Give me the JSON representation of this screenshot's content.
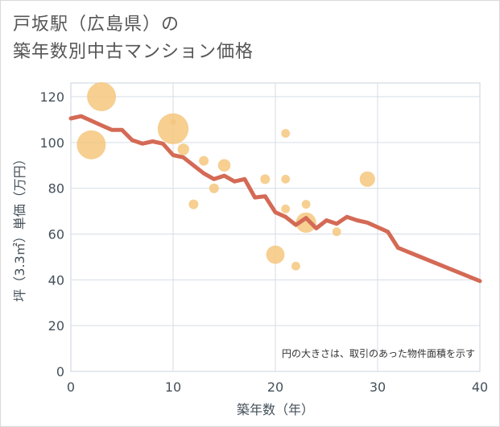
{
  "header": {
    "title_line1": "戸坂駅（広島県）の",
    "title_line2": "築年数別中古マンション価格"
  },
  "chart_data": {
    "type": "scatter",
    "xlabel": "築年数（年）",
    "ylabel": "坪（3.3㎡）単価（万円）",
    "xlim": [
      0,
      40
    ],
    "ylim": [
      0,
      126
    ],
    "xticks": [
      0,
      10,
      20,
      30,
      40
    ],
    "yticks": [
      0,
      20,
      40,
      60,
      80,
      100,
      120
    ],
    "grid": true,
    "note": "円の大きさは、取引のあった物件面積を示す",
    "colors": {
      "bubble": "#f5c77e",
      "line": "#d46a55",
      "grid": "#d5dde5"
    },
    "points": [
      {
        "x": 2,
        "y": 99,
        "size": 3
      },
      {
        "x": 3,
        "y": 120,
        "size": 3
      },
      {
        "x": 10,
        "y": 106,
        "size": 3.2
      },
      {
        "x": 10,
        "y": 109,
        "size": 0.6
      },
      {
        "x": 11,
        "y": 97,
        "size": 1.2
      },
      {
        "x": 12,
        "y": 73,
        "size": 1
      },
      {
        "x": 13,
        "y": 92,
        "size": 1
      },
      {
        "x": 14,
        "y": 80,
        "size": 1
      },
      {
        "x": 15,
        "y": 90,
        "size": 1.3
      },
      {
        "x": 19,
        "y": 84,
        "size": 1
      },
      {
        "x": 20,
        "y": 51,
        "size": 1.9
      },
      {
        "x": 21,
        "y": 104,
        "size": 0.9
      },
      {
        "x": 21,
        "y": 84,
        "size": 0.9
      },
      {
        "x": 21,
        "y": 71,
        "size": 0.9
      },
      {
        "x": 22,
        "y": 46,
        "size": 0.9
      },
      {
        "x": 23,
        "y": 73,
        "size": 0.9
      },
      {
        "x": 23,
        "y": 65,
        "size": 2.1
      },
      {
        "x": 26,
        "y": 61,
        "size": 0.9
      },
      {
        "x": 29,
        "y": 84,
        "size": 1.6
      }
    ],
    "trend": {
      "x": [
        0,
        1,
        2,
        3,
        4,
        5,
        6,
        7,
        8,
        9,
        10,
        11,
        12,
        13,
        14,
        15,
        16,
        17,
        18,
        19,
        20,
        21,
        22,
        23,
        24,
        25,
        26,
        27,
        28,
        29,
        30,
        31,
        32,
        40
      ],
      "y": [
        110.5,
        111.5,
        109.5,
        107.5,
        105.5,
        105.5,
        101,
        99.5,
        100.5,
        99.5,
        94.5,
        93.5,
        90,
        86.5,
        84,
        85.5,
        83,
        84,
        76,
        76.5,
        69.5,
        67.5,
        64,
        67,
        62.5,
        66,
        64.5,
        67.5,
        66,
        65,
        63,
        61,
        54,
        39.5
      ]
    }
  }
}
